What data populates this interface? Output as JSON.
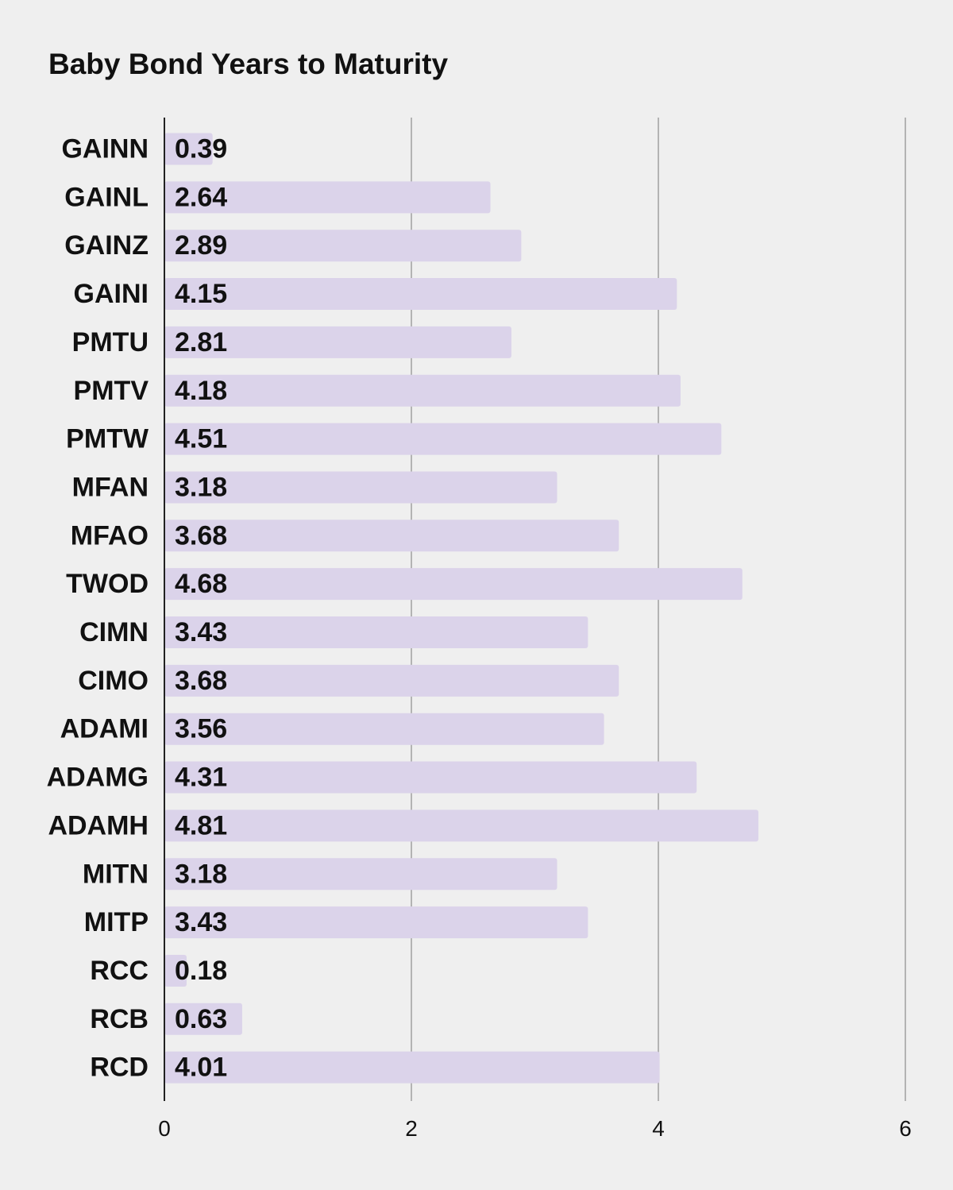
{
  "chart_data": {
    "type": "bar",
    "orientation": "horizontal",
    "title": "Baby Bond Years to Maturity",
    "categories": [
      "GAINN",
      "GAINL",
      "GAINZ",
      "GAINI",
      "PMTU",
      "PMTV",
      "PMTW",
      "MFAN",
      "MFAO",
      "TWOD",
      "CIMN",
      "CIMO",
      "ADAMI",
      "ADAMG",
      "ADAMH",
      "MITN",
      "MITP",
      "RCC",
      "RCB",
      "RCD"
    ],
    "values": [
      0.39,
      2.64,
      2.89,
      4.15,
      2.81,
      4.18,
      4.51,
      3.18,
      3.68,
      4.68,
      3.43,
      3.68,
      3.56,
      4.31,
      4.81,
      3.18,
      3.43,
      0.18,
      0.63,
      4.01
    ],
    "value_labels": [
      "0.39",
      "2.64",
      "2.89",
      "4.15",
      "2.81",
      "4.18",
      "4.51",
      "3.18",
      "3.68",
      "4.68",
      "3.43",
      "3.68",
      "3.56",
      "4.31",
      "4.81",
      "3.18",
      "3.43",
      "0.18",
      "0.63",
      "4.01"
    ],
    "xlim": [
      0,
      6
    ],
    "xticks": [
      "0",
      "2",
      "4",
      "6"
    ],
    "xlabel": "",
    "ylabel": "",
    "grid": true,
    "legend": "none",
    "colors": {
      "bar": "#dbd3ea",
      "grid": "#b3b3b3",
      "axis": "#222222",
      "background": "#efefef",
      "text": "#111111"
    }
  }
}
